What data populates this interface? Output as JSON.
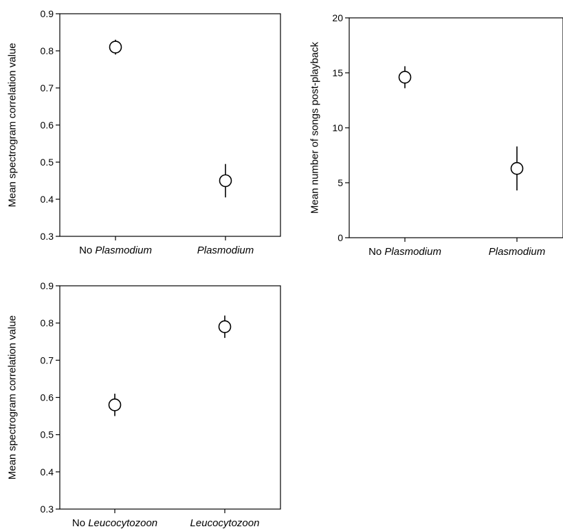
{
  "chart_data": [
    {
      "type": "scatter",
      "ylabel": "Mean spectrogram correlation value",
      "ylim": [
        0.3,
        0.9
      ],
      "yticks": [
        "0.9",
        "0.8",
        "0.7",
        "0.6",
        "0.5",
        "0.4",
        "0.3"
      ],
      "categories": [
        {
          "plain": "No ",
          "italic": "Plasmodium"
        },
        {
          "plain": "",
          "italic": "Plasmodium"
        }
      ],
      "points": [
        {
          "mean": 0.81,
          "low": 0.79,
          "high": 0.83
        },
        {
          "mean": 0.45,
          "low": 0.405,
          "high": 0.495
        }
      ]
    },
    {
      "type": "scatter",
      "ylabel": "Mean number of songs post-playback",
      "ylim": [
        0,
        20
      ],
      "yticks": [
        "20",
        "15",
        "10",
        "5",
        "0"
      ],
      "categories": [
        {
          "plain": "No ",
          "italic": "Plasmodium"
        },
        {
          "plain": "",
          "italic": "Plasmodium"
        }
      ],
      "points": [
        {
          "mean": 14.6,
          "low": 13.6,
          "high": 15.6
        },
        {
          "mean": 6.3,
          "low": 4.3,
          "high": 8.3
        }
      ]
    },
    {
      "type": "scatter",
      "ylabel": "Mean spectrogram correlation value",
      "ylim": [
        0.3,
        0.9
      ],
      "yticks": [
        "0.9",
        "0.8",
        "0.7",
        "0.6",
        "0.5",
        "0.4",
        "0.3"
      ],
      "categories": [
        {
          "plain": "No ",
          "italic": "Leucocytozoon"
        },
        {
          "plain": "",
          "italic": "Leucocytozoon"
        }
      ],
      "points": [
        {
          "mean": 0.58,
          "low": 0.55,
          "high": 0.61
        },
        {
          "mean": 0.79,
          "low": 0.76,
          "high": 0.82
        }
      ]
    }
  ]
}
